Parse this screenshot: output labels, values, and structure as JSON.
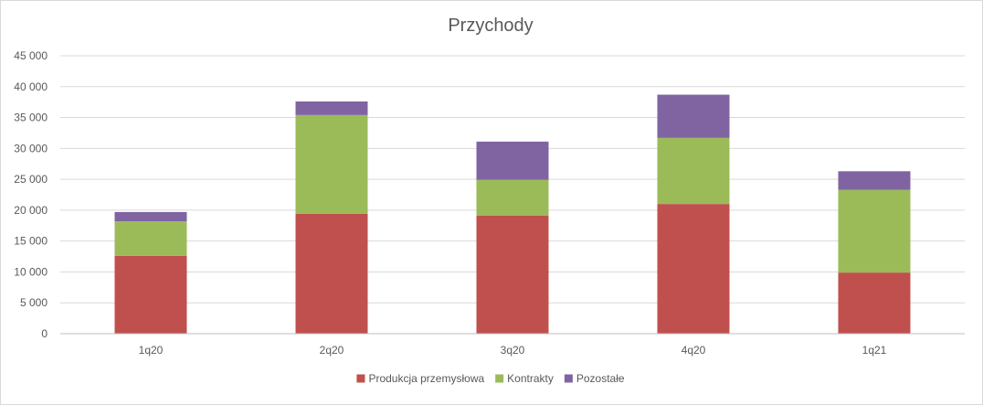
{
  "chart_data": {
    "type": "bar",
    "stacked": true,
    "title": "Przychody",
    "xlabel": "",
    "ylabel": "",
    "categories": [
      "1q20",
      "2q20",
      "3q20",
      "4q20",
      "1q21"
    ],
    "series": [
      {
        "name": "Produkcja przemysłowa",
        "color": "#C0504D",
        "values": [
          12600,
          19400,
          19100,
          21000,
          9900
        ]
      },
      {
        "name": "Kontrakty",
        "color": "#9BBB59",
        "values": [
          5600,
          16000,
          5800,
          10700,
          13400
        ]
      },
      {
        "name": "Pozostałe",
        "color": "#8064A2",
        "values": [
          1500,
          2200,
          6200,
          7000,
          3000
        ]
      }
    ],
    "ylim": [
      0,
      45000
    ],
    "yticks": [
      0,
      5000,
      10000,
      15000,
      20000,
      25000,
      30000,
      35000,
      40000,
      45000
    ],
    "ytick_labels": [
      "0",
      "5 000",
      "10 000",
      "15 000",
      "20 000",
      "25 000",
      "30 000",
      "35 000",
      "40 000",
      "45 000"
    ],
    "grid": true,
    "legend_position": "bottom"
  }
}
